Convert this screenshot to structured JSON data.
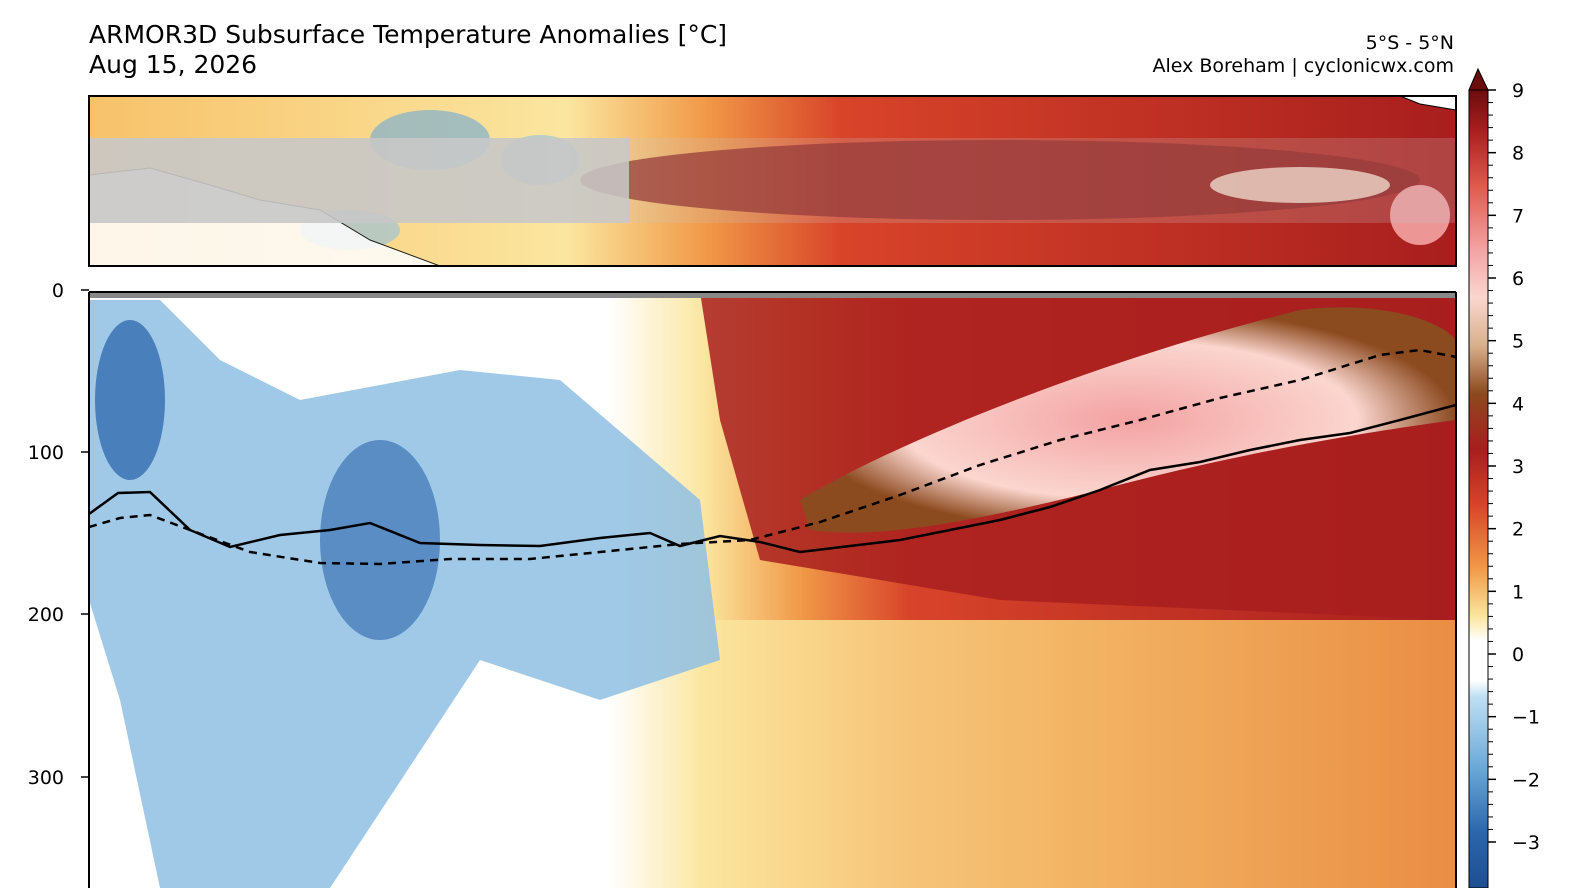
{
  "header": {
    "title": "ARMOR3D Subsurface Temperature Anomalies [°C]",
    "date": "Aug 15, 2026",
    "region": "5°S - 5°N",
    "credit": "Alex Boreham | cyclonicwx.com"
  },
  "chart_data": [
    {
      "type": "heatmap",
      "panel": "map",
      "title": "",
      "region_shaded": "5°S - 5°N",
      "xlabel": "",
      "ylabel": ""
    },
    {
      "type": "heatmap",
      "panel": "depth-section",
      "xlabel": "",
      "ylabel": "",
      "y_ticks": [
        0,
        100,
        200,
        300
      ],
      "ylim": [
        360,
        0
      ],
      "y_inverted": true,
      "anomaly_field": [
        {
          "region": "west",
          "depth_range": [
            0,
            360
          ],
          "anomaly": -1.5
        },
        {
          "region": "west-central",
          "depth_range": [
            60,
            360
          ],
          "anomaly": -1.5
        },
        {
          "region": "central",
          "depth_range": [
            0,
            230
          ],
          "anomaly": 1.0
        },
        {
          "region": "east",
          "depth_range": [
            0,
            200
          ],
          "anomaly": 3.5
        },
        {
          "region": "east-core",
          "depth_range": [
            40,
            150
          ],
          "anomaly": 6.0
        },
        {
          "region": "east-deep",
          "depth_range": [
            200,
            360
          ],
          "anomaly": 1.0
        }
      ],
      "lines": [
        {
          "style": "solid",
          "depth_profile": [
            136,
            125,
            136,
            150,
            155,
            150,
            158,
            158,
            157,
            154,
            155,
            158,
            160,
            152,
            140,
            125,
            115,
            105,
            95,
            88,
            90,
            82,
            75
          ]
        },
        {
          "style": "dashed",
          "depth_profile": [
            145,
            140,
            150,
            163,
            169,
            169,
            167,
            165,
            162,
            159,
            155,
            138,
            120,
            105,
            92,
            82,
            70,
            58,
            48,
            40,
            43
          ]
        }
      ]
    }
  ],
  "colorbar": {
    "ticks": [
      9,
      8,
      7,
      6,
      5,
      4,
      3,
      2,
      1,
      0,
      -1,
      -2,
      -3
    ],
    "tick_labels": [
      "9",
      "8",
      "7",
      "6",
      "5",
      "4",
      "3",
      "2",
      "1",
      "0",
      "−1",
      "−2",
      "−3"
    ],
    "extend": "max",
    "colors": {
      "top": "#6b0d0d",
      "dark_red": "#a81e1e",
      "red": "#d8442a",
      "orange": "#f19a48",
      "light_orange": "#f7c26a",
      "yellow": "#fbe6a0",
      "pink": "#f3a3a3",
      "light_pink": "#fbd6cf",
      "brown": "#8c4a1f",
      "white": "#ffffff",
      "light_blue": "#bfe0f3",
      "blue": "#6aa8d8",
      "dark_blue": "#2c66ab",
      "navy": "#1d4f91"
    }
  }
}
